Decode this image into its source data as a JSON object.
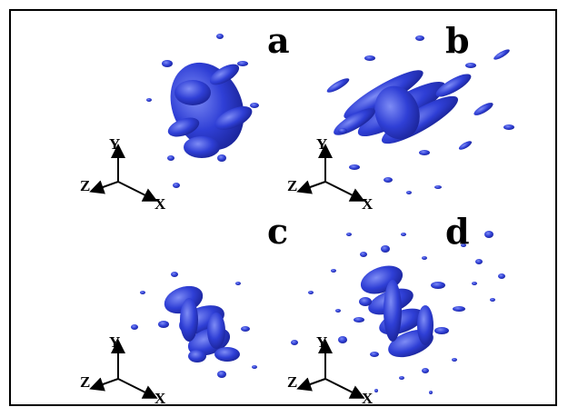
{
  "figure": {
    "panels": [
      {
        "letter": "a",
        "axes": {
          "x": "X",
          "y": "Y",
          "z": "Z"
        }
      },
      {
        "letter": "b",
        "axes": {
          "x": "X",
          "y": "Y",
          "z": "Z"
        }
      },
      {
        "letter": "c",
        "axes": {
          "x": "X",
          "y": "Y",
          "z": "Z"
        }
      },
      {
        "letter": "d",
        "axes": {
          "x": "X",
          "y": "Y",
          "z": "Z"
        }
      }
    ],
    "colors": {
      "blob_fill": "#2f3fd6",
      "blob_highlight": "#6a78f0",
      "blob_shadow": "#1a2396",
      "border": "#000000",
      "axis": "#000000"
    }
  }
}
